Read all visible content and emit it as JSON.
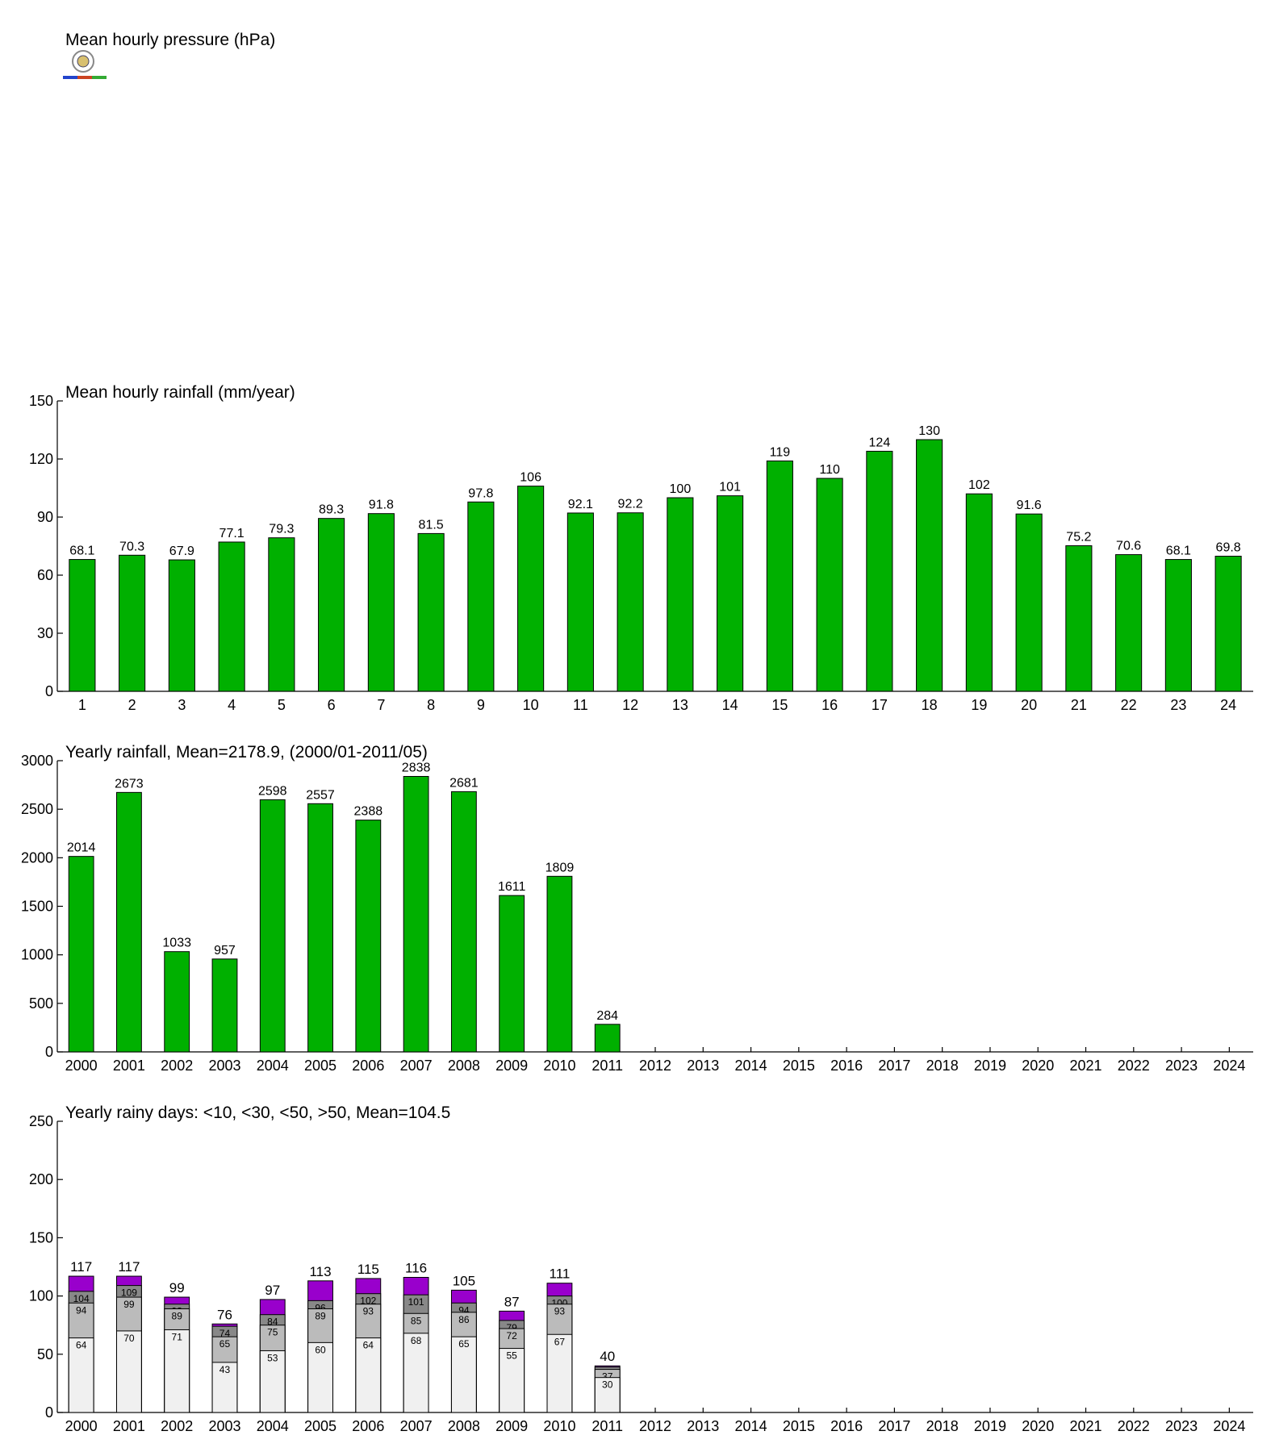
{
  "chart_data": [
    {
      "type": "empty",
      "title": "Mean hourly pressure (hPa)"
    },
    {
      "type": "bar",
      "title": "Mean hourly rainfall (mm/year)",
      "categories": [
        "1",
        "2",
        "3",
        "4",
        "5",
        "6",
        "7",
        "8",
        "9",
        "10",
        "11",
        "12",
        "13",
        "14",
        "15",
        "16",
        "17",
        "18",
        "19",
        "20",
        "21",
        "22",
        "23",
        "24"
      ],
      "values": [
        68.1,
        70.3,
        67.9,
        77.1,
        79.3,
        89.3,
        91.8,
        81.5,
        97.8,
        106,
        92.1,
        92.2,
        100,
        101,
        119,
        110,
        124,
        130,
        102,
        91.6,
        75.2,
        70.6,
        68.1,
        69.8
      ],
      "color": "#00b000",
      "ylim": [
        0,
        150
      ],
      "yticks": [
        0,
        30,
        60,
        90,
        120,
        150
      ]
    },
    {
      "type": "bar",
      "title": "Yearly rainfall, Mean=2178.9, (2000/01-2011/05)",
      "categories": [
        "2000",
        "2001",
        "2002",
        "2003",
        "2004",
        "2005",
        "2006",
        "2007",
        "2008",
        "2009",
        "2010",
        "2011",
        "2012",
        "2013",
        "2014",
        "2015",
        "2016",
        "2017",
        "2018",
        "2019",
        "2020",
        "2021",
        "2022",
        "2023",
        "2024"
      ],
      "values": [
        2014,
        2673,
        1033,
        957,
        2598,
        2557,
        2388,
        2838,
        2681,
        1611,
        1809,
        284,
        null,
        null,
        null,
        null,
        null,
        null,
        null,
        null,
        null,
        null,
        null,
        null,
        null
      ],
      "color": "#00b000",
      "ylim": [
        0,
        3000
      ],
      "yticks": [
        0,
        500,
        1000,
        1500,
        2000,
        2500,
        3000
      ]
    },
    {
      "type": "overlap-bar",
      "title": "Yearly rainy days: <10, <30, <50, >50, Mean=104.5",
      "categories": [
        "2000",
        "2001",
        "2002",
        "2003",
        "2004",
        "2005",
        "2006",
        "2007",
        "2008",
        "2009",
        "2010",
        "2011",
        "2012",
        "2013",
        "2014",
        "2015",
        "2016",
        "2017",
        "2018",
        "2019",
        "2020",
        "2021",
        "2022",
        "2023",
        "2024"
      ],
      "series": [
        {
          "color": "#9900cc",
          "values": [
            117,
            117,
            99,
            76,
            97,
            113,
            115,
            116,
            105,
            87,
            111,
            40,
            null,
            null,
            null,
            null,
            null,
            null,
            null,
            null,
            null,
            null,
            null,
            null,
            null
          ]
        },
        {
          "color": "#888888",
          "values": [
            104,
            109,
            93,
            74,
            84,
            96,
            102,
            101,
            94,
            79,
            100,
            39,
            null,
            null,
            null,
            null,
            null,
            null,
            null,
            null,
            null,
            null,
            null,
            null,
            null
          ]
        },
        {
          "color": "#bbbbbb",
          "values": [
            94,
            99,
            89,
            65,
            75,
            89,
            93,
            85,
            86,
            72,
            93,
            37,
            null,
            null,
            null,
            null,
            null,
            null,
            null,
            null,
            null,
            null,
            null,
            null,
            null
          ]
        },
        {
          "color": "#f0f0f0",
          "values": [
            64,
            70,
            71,
            43,
            53,
            60,
            64,
            68,
            65,
            55,
            67,
            30,
            null,
            null,
            null,
            null,
            null,
            null,
            null,
            null,
            null,
            null,
            null,
            null,
            null
          ]
        }
      ],
      "ylim": [
        0,
        250
      ],
      "yticks": [
        0,
        50,
        100,
        150,
        200,
        250
      ]
    }
  ]
}
